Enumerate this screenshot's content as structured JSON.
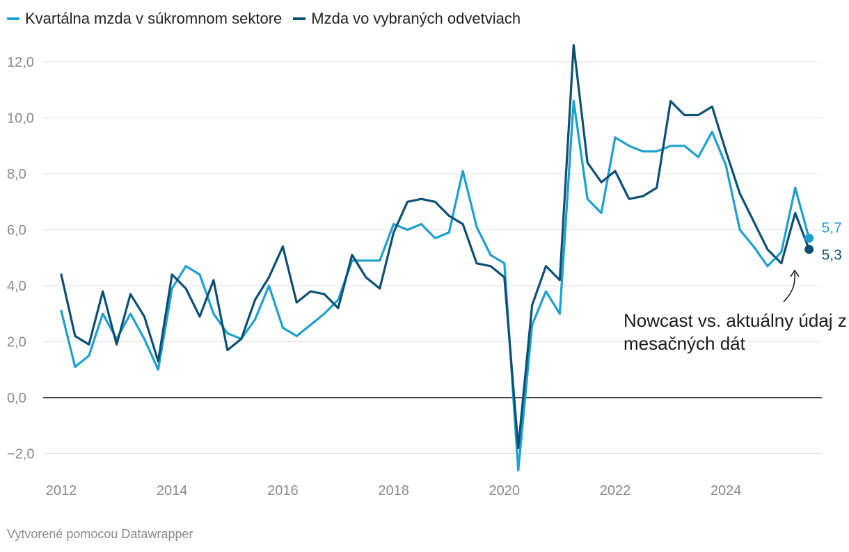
{
  "chart_data": {
    "type": "line",
    "title": "",
    "xlabel": "",
    "ylabel": "",
    "ylim": [
      -2.7,
      12.9
    ],
    "yticks": [
      -2.0,
      0.0,
      2.0,
      4.0,
      6.0,
      8.0,
      10.0,
      12.0
    ],
    "ytick_labels": [
      "−2,0",
      "0,0",
      "2,0",
      "4,0",
      "6,0",
      "8,0",
      "10,0",
      "12,0"
    ],
    "xlim": [
      2012,
      2025.75
    ],
    "xticks": [
      2012,
      2014,
      2016,
      2018,
      2020,
      2022,
      2024
    ],
    "xtick_labels": [
      "2012",
      "2014",
      "2016",
      "2018",
      "2020",
      "2022",
      "2024"
    ],
    "series": [
      {
        "name": "Kvartálna mzda v súkromnom sektore",
        "color": "#1d9fd0",
        "x": [
          2012.0,
          2012.25,
          2012.5,
          2012.75,
          2013.0,
          2013.25,
          2013.5,
          2013.75,
          2014.0,
          2014.25,
          2014.5,
          2014.75,
          2015.0,
          2015.25,
          2015.5,
          2015.75,
          2016.0,
          2016.25,
          2016.5,
          2016.75,
          2017.0,
          2017.25,
          2017.5,
          2017.75,
          2018.0,
          2018.25,
          2018.5,
          2018.75,
          2019.0,
          2019.25,
          2019.5,
          2019.75,
          2020.0,
          2020.25,
          2020.5,
          2020.75,
          2021.0,
          2021.25,
          2021.5,
          2021.75,
          2022.0,
          2022.25,
          2022.5,
          2022.75,
          2023.0,
          2023.25,
          2023.5,
          2023.75,
          2024.0,
          2024.25,
          2024.5,
          2024.75,
          2025.0,
          2025.25,
          2025.5
        ],
        "values": [
          3.1,
          1.1,
          1.5,
          3.0,
          2.1,
          3.0,
          2.1,
          1.0,
          3.9,
          4.7,
          4.4,
          3.0,
          2.3,
          2.1,
          2.8,
          4.0,
          2.5,
          2.2,
          2.6,
          3.0,
          3.5,
          4.9,
          4.9,
          4.9,
          6.2,
          6.0,
          6.2,
          5.7,
          5.9,
          8.1,
          6.1,
          5.1,
          4.8,
          -2.6,
          2.6,
          3.8,
          3.0,
          10.6,
          7.1,
          6.6,
          9.3,
          9.0,
          8.8,
          8.8,
          9.0,
          9.0,
          8.6,
          9.5,
          8.3,
          6.0,
          5.4,
          4.7,
          5.2,
          7.5,
          5.7
        ]
      },
      {
        "name": "Mzda vo vybraných odvetviach",
        "color": "#0b4f73",
        "x": [
          2012.0,
          2012.25,
          2012.5,
          2012.75,
          2013.0,
          2013.25,
          2013.5,
          2013.75,
          2014.0,
          2014.25,
          2014.5,
          2014.75,
          2015.0,
          2015.25,
          2015.5,
          2015.75,
          2016.0,
          2016.25,
          2016.5,
          2016.75,
          2017.0,
          2017.25,
          2017.5,
          2017.75,
          2018.0,
          2018.25,
          2018.5,
          2018.75,
          2019.0,
          2019.25,
          2019.5,
          2019.75,
          2020.0,
          2020.25,
          2020.5,
          2020.75,
          2021.0,
          2021.25,
          2021.5,
          2021.75,
          2022.0,
          2022.25,
          2022.5,
          2022.75,
          2023.0,
          2023.25,
          2023.5,
          2023.75,
          2024.0,
          2024.25,
          2024.5,
          2024.75,
          2025.0,
          2025.25,
          2025.5
        ],
        "values": [
          4.4,
          2.2,
          1.9,
          3.8,
          1.9,
          3.7,
          2.9,
          1.3,
          4.4,
          3.9,
          2.9,
          4.2,
          1.7,
          2.1,
          3.5,
          4.3,
          5.4,
          3.4,
          3.8,
          3.7,
          3.2,
          5.1,
          4.3,
          3.9,
          5.9,
          7.0,
          7.1,
          7.0,
          6.5,
          6.2,
          4.8,
          4.7,
          4.3,
          -1.8,
          3.3,
          4.7,
          4.2,
          12.6,
          8.4,
          7.7,
          8.1,
          7.1,
          7.2,
          7.5,
          10.6,
          10.1,
          10.1,
          10.4,
          8.8,
          7.3,
          6.3,
          5.3,
          4.8,
          6.6,
          5.3
        ]
      }
    ],
    "end_labels": [
      "5,7",
      "5,3"
    ],
    "annotation": {
      "line1": "Nowcast vs. aktuálny údaj z",
      "line2": "mesačných dát"
    },
    "footer": "Vytvorené pomocou Datawrapper"
  }
}
